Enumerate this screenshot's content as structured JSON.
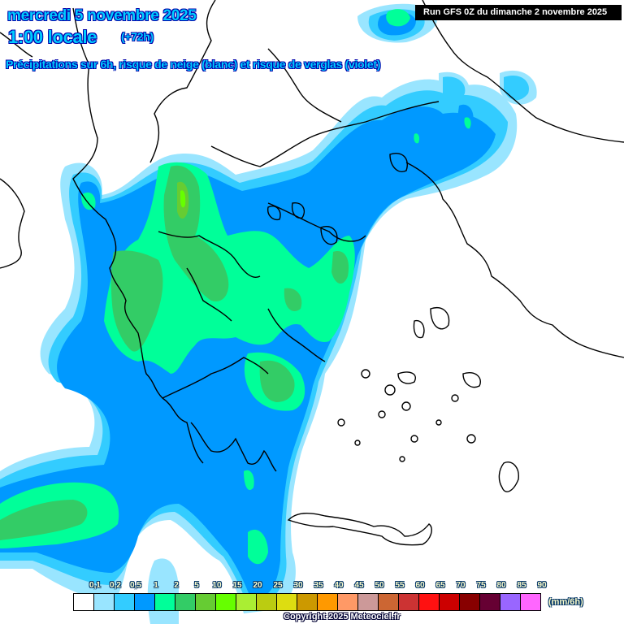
{
  "header": {
    "date": "mercredi 5 novembre 2025",
    "time": "1:00 locale",
    "lead": "(+72h)",
    "subtitle": "Précipitations sur 6h, risque de neige (blanc) et risque de verglas (violet)",
    "run": "Run GFS 0Z du dimanche 2 novembre 2025"
  },
  "legend": {
    "unit": "(mm/6h)",
    "labels": [
      "0,1",
      "0,2",
      "0,5",
      "1",
      "2",
      "5",
      "10",
      "15",
      "20",
      "25",
      "30",
      "35",
      "40",
      "45",
      "50",
      "55",
      "60",
      "65",
      "70",
      "75",
      "80",
      "85",
      "90"
    ],
    "colors": [
      "#ffffff",
      "#99e5ff",
      "#33ccff",
      "#0099ff",
      "#00ff99",
      "#33cc66",
      "#66cc33",
      "#66ff00",
      "#aaee33",
      "#bbcc11",
      "#dddd11",
      "#cc9900",
      "#ff9900",
      "#ff9966",
      "#cc9999",
      "#cc6633",
      "#cc3333",
      "#ff1111",
      "#cc0000",
      "#880000",
      "#660033",
      "#9966ff",
      "#ff66ff"
    ]
  },
  "copyright": "Copyright 2025 Meteociel.fr",
  "precip_colors": {
    "p01": "#99e5ff",
    "p02": "#33ccff",
    "p05": "#0099ff",
    "p1": "#00ff99",
    "p2": "#33cc66",
    "p5": "#66cc33",
    "p10": "#66ff00"
  }
}
